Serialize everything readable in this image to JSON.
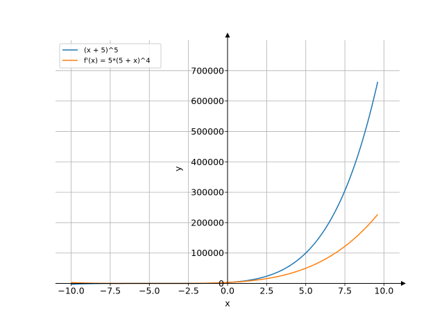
{
  "chart_data": {
    "type": "line",
    "title": "",
    "xlabel": "x",
    "ylabel": "y",
    "xlim": [
      -11,
      11
    ],
    "ylim": [
      -1000,
      800000
    ],
    "grid": true,
    "legend_position": "top-left",
    "x_ticks": [
      -10,
      -7.5,
      -5,
      -2.5,
      0,
      2.5,
      5,
      7.5,
      10
    ],
    "x_tick_labels": [
      "−10.0",
      "−7.5",
      "−5.0",
      "−2.5",
      "0.0",
      "2.5",
      "5.0",
      "7.5",
      "10.0"
    ],
    "y_ticks": [
      0,
      100000,
      200000,
      300000,
      400000,
      500000,
      600000,
      700000
    ],
    "y_tick_labels": [
      "0",
      "100000",
      "200000",
      "300000",
      "400000",
      "500000",
      "600000",
      "700000"
    ],
    "series": [
      {
        "name": "(x + 5)^5",
        "color": "#1f77b4",
        "x": [
          -10,
          -9,
          -8,
          -7,
          -6,
          -5,
          -4,
          -3,
          -2,
          -1,
          0,
          1,
          2,
          3,
          4,
          5,
          6,
          7,
          8,
          9,
          9.6
        ],
        "y": [
          -3125,
          -1024,
          -243,
          -32,
          -1,
          0,
          1,
          32,
          243,
          1024,
          3125,
          7776,
          16807,
          32768,
          59049,
          100000,
          161051,
          248832,
          371293,
          537824,
          661826
        ]
      },
      {
        "name": "f'(x) = 5*(5 + x)^4",
        "color": "#ff7f0e",
        "x": [
          -10,
          -9,
          -8,
          -7,
          -6,
          -5,
          -4,
          -3,
          -2,
          -1,
          0,
          1,
          2,
          3,
          4,
          5,
          6,
          7,
          8,
          9,
          9.6
        ],
        "y": [
          3125,
          1280,
          405,
          80,
          5,
          0,
          5,
          80,
          405,
          1280,
          3125,
          6480,
          12005,
          20480,
          32805,
          50000,
          73205,
          103680,
          142805,
          192080,
          226651
        ]
      }
    ]
  }
}
